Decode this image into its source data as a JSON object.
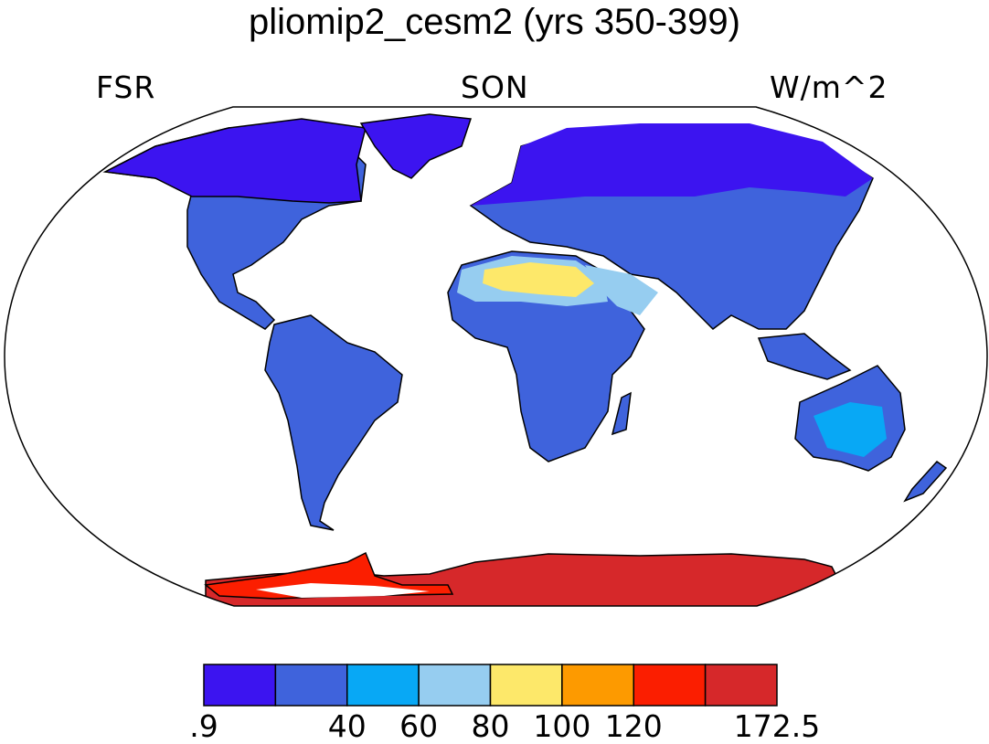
{
  "title": "pliomip2_cesm2 (yrs 350-399)",
  "subtitle_left": "FSR",
  "subtitle_center": "SON",
  "subtitle_right": "W/m^2",
  "colorbar": {
    "colors": [
      "#3c14f0",
      "#3f63dc",
      "#08a8f5",
      "#96cdf0",
      "#fde86a",
      "#fd9a00",
      "#fb1e00",
      "#d6282a"
    ],
    "labels": [
      ".9",
      "40",
      "60",
      "80",
      "100",
      "120",
      "172.5"
    ]
  }
}
